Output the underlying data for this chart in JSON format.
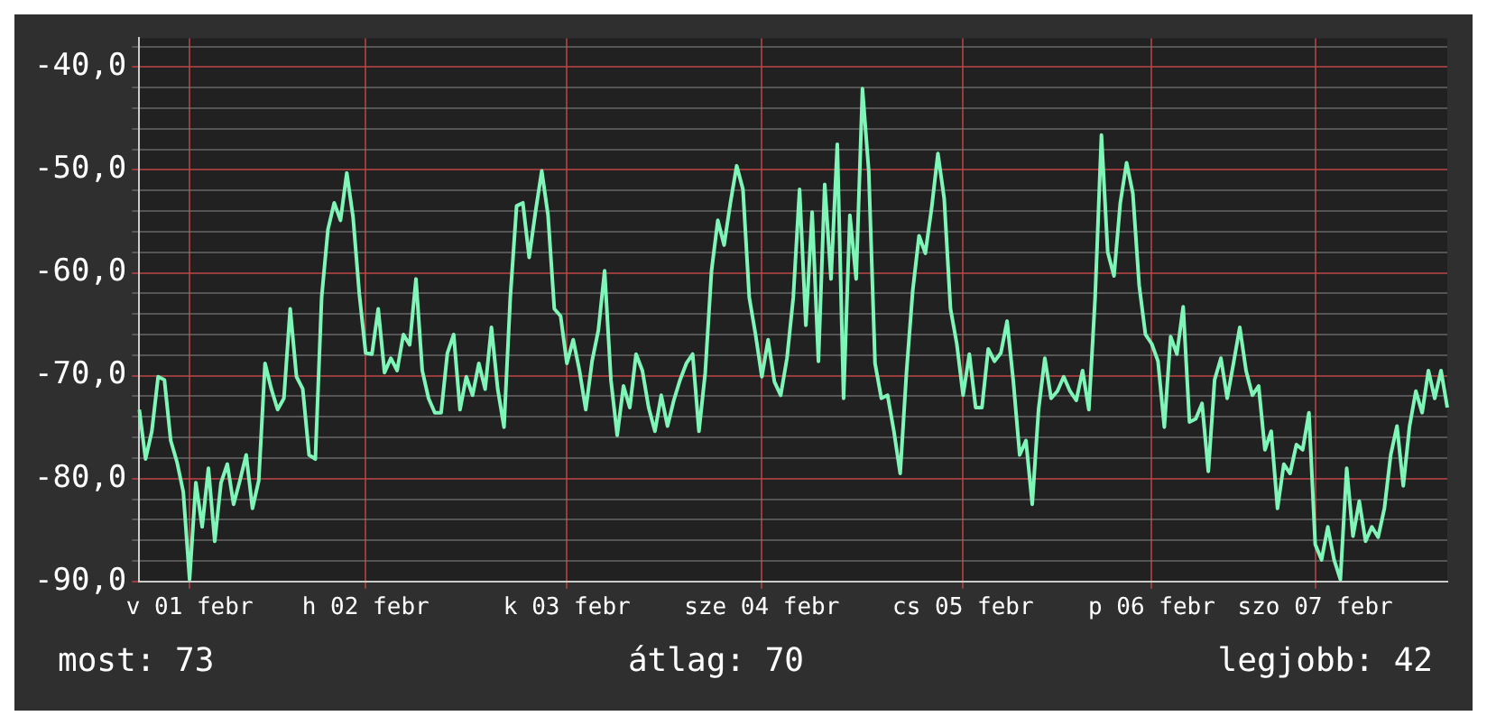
{
  "chart_data": {
    "type": "line",
    "annotations": [
      "most: 73",
      "átlag: 70",
      "legjobb: 42"
    ],
    "categories": [
      null,
      null,
      null,
      null,
      null,
      null,
      null,
      null,
      "v 01 febr",
      null,
      null,
      null,
      null,
      null,
      null,
      null,
      null,
      null,
      null,
      null,
      null,
      null,
      null,
      null,
      null,
      null,
      null,
      null,
      null,
      null,
      null,
      null,
      null,
      null,
      null,
      null,
      "h 02 febr",
      null,
      null,
      null,
      null,
      null,
      null,
      null,
      null,
      null,
      null,
      null,
      null,
      null,
      null,
      null,
      null,
      null,
      null,
      null,
      null,
      null,
      null,
      null,
      null,
      null,
      null,
      null,
      null,
      null,
      null,
      null,
      "k 03 febr",
      null,
      null,
      null,
      null,
      null,
      null,
      null,
      null,
      null,
      null,
      null,
      null,
      null,
      null,
      null,
      null,
      null,
      null,
      null,
      null,
      null,
      null,
      null,
      null,
      null,
      null,
      null,
      null,
      null,
      null,
      "sze 04 febr",
      null,
      null,
      null,
      null,
      null,
      null,
      null,
      null,
      null,
      null,
      null,
      null,
      null,
      null,
      null,
      null,
      null,
      null,
      null,
      null,
      null,
      null,
      null,
      null,
      null,
      null,
      null,
      null,
      null,
      null,
      null,
      "cs 05 febr",
      null,
      null,
      null,
      null,
      null,
      null,
      null,
      null,
      null,
      null,
      null,
      null,
      null,
      null,
      null,
      null,
      null,
      null,
      null,
      null,
      null,
      null,
      null,
      null,
      null,
      null,
      null,
      null,
      null,
      "p 06 febr",
      null,
      null,
      null,
      null,
      null,
      null,
      null,
      null,
      null,
      null,
      null,
      null,
      null,
      null,
      null,
      null,
      null,
      null,
      null,
      null,
      null,
      null,
      null,
      null,
      null,
      "szo 07 febr",
      null,
      null,
      null,
      null,
      null,
      null,
      null,
      null,
      null,
      null,
      null,
      null,
      null,
      null,
      null,
      null,
      null,
      null,
      null,
      null,
      null
    ],
    "series": [
      {
        "color": "#7ff5b8",
        "values": [
          -73.3,
          -78.1,
          -75.4,
          -70.1,
          -70.4,
          -76.3,
          -78.4,
          -81.3,
          -89.8,
          -80.4,
          -84.7,
          -79,
          -86.1,
          -80.4,
          -78.6,
          -82.5,
          -80.2,
          -77.7,
          -82.9,
          -80.2,
          -68.8,
          -71.3,
          -73.3,
          -72.2,
          -63.5,
          -70.1,
          -71.3,
          -77.7,
          -78.1,
          -62.4,
          -55.8,
          -53.2,
          -54.9,
          -50.3,
          -54.6,
          -62.1,
          -67.8,
          -67.9,
          -63.5,
          -69.7,
          -68.3,
          -69.5,
          -66,
          -67,
          -60.6,
          -69.5,
          -72.2,
          -73.6,
          -73.6,
          -67.8,
          -66,
          -73.3,
          -70.1,
          -71.9,
          -68.8,
          -71.3,
          -65.3,
          -71.3,
          -75,
          -62.4,
          -53.5,
          -53.2,
          -58.5,
          -54.1,
          -50.1,
          -54.4,
          -63.5,
          -64.2,
          -68.8,
          -66.5,
          -69.5,
          -73.3,
          -68.6,
          -65.6,
          -59.8,
          -70.4,
          -75.8,
          -71,
          -73.1,
          -67.9,
          -69.5,
          -73.1,
          -75.4,
          -71.9,
          -74.9,
          -72.4,
          -70.4,
          -68.8,
          -67.9,
          -75.4,
          -69.7,
          -59.8,
          -54.9,
          -57.3,
          -53.2,
          -49.6,
          -51.9,
          -62.4,
          -66,
          -70.1,
          -66.5,
          -70.6,
          -71.9,
          -68.3,
          -62.4,
          -51.9,
          -65.1,
          -54.1,
          -68.6,
          -51.4,
          -60.6,
          -47.5,
          -72.2,
          -54.4,
          -60.6,
          -42.1,
          -50.1,
          -68.8,
          -72.2,
          -71.9,
          -75.4,
          -79.5,
          -69.7,
          -61.7,
          -56.4,
          -58.1,
          -53.7,
          -48.4,
          -52.8,
          -63.5,
          -66.9,
          -71.9,
          -67.9,
          -73.1,
          -73.1,
          -67.4,
          -68.6,
          -67.8,
          -64.7,
          -70.6,
          -77.7,
          -76.3,
          -82.5,
          -73.3,
          -68.3,
          -72.2,
          -71.5,
          -70.1,
          -71.5,
          -72.4,
          -69.5,
          -73.3,
          -62.4,
          -46.6,
          -58,
          -60.3,
          -53.2,
          -49.3,
          -52.3,
          -61.2,
          -66,
          -66.9,
          -68.6,
          -75,
          -66.2,
          -67.9,
          -63.3,
          -74.5,
          -74.2,
          -72.7,
          -79.3,
          -70.4,
          -68.3,
          -72.2,
          -68.8,
          -65.3,
          -69.5,
          -71.9,
          -71,
          -77.2,
          -75.4,
          -82.9,
          -78.6,
          -79.5,
          -76.7,
          -77.2,
          -73.6,
          -86.4,
          -87.9,
          -84.7,
          -87.9,
          -89.8,
          -79,
          -85.6,
          -82.2,
          -86.1,
          -84.7,
          -85.7,
          -82.9,
          -77.7,
          -74.9,
          -80.7,
          -74.9,
          -71.5,
          -73.6,
          -69.5,
          -72.2,
          -69.5,
          -73.1
        ]
      }
    ],
    "ylim": [
      -90,
      -37.2
    ],
    "yticks": [
      {
        "value": -90,
        "label": "-90,0"
      },
      {
        "value": -88,
        "label": null
      },
      {
        "value": -86,
        "label": null
      },
      {
        "value": -84,
        "label": null
      },
      {
        "value": -82,
        "label": null
      },
      {
        "value": -80,
        "label": "-80,0"
      },
      {
        "value": -78,
        "label": null
      },
      {
        "value": -76,
        "label": null
      },
      {
        "value": -74,
        "label": null
      },
      {
        "value": -72,
        "label": null
      },
      {
        "value": -70,
        "label": "-70,0"
      },
      {
        "value": -68,
        "label": null
      },
      {
        "value": -66,
        "label": null
      },
      {
        "value": -64,
        "label": null
      },
      {
        "value": -62,
        "label": null
      },
      {
        "value": -60,
        "label": "-60,0"
      },
      {
        "value": -58,
        "label": null
      },
      {
        "value": -56,
        "label": null
      },
      {
        "value": -54,
        "label": null
      },
      {
        "value": -52,
        "label": null
      },
      {
        "value": -50,
        "label": "-50,0"
      },
      {
        "value": -48,
        "label": null
      },
      {
        "value": -46,
        "label": null
      },
      {
        "value": -44,
        "label": null
      },
      {
        "value": -42,
        "label": null
      },
      {
        "value": -40,
        "label": "-40,0"
      },
      {
        "value": -38,
        "label": null
      }
    ],
    "grid": true,
    "legend": false,
    "marker": "none",
    "line_style": "solid"
  }
}
